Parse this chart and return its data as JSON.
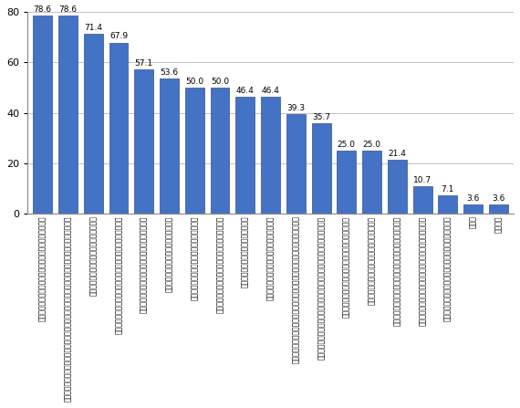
{
  "values": [
    78.6,
    78.6,
    71.4,
    67.9,
    57.1,
    53.6,
    50.0,
    50.0,
    46.4,
    46.4,
    39.3,
    35.7,
    25.0,
    25.0,
    21.4,
    10.7,
    7.1,
    3.6,
    3.6
  ],
  "labels": [
    "知事のマニフェスト・公約に雇用創出が挙げられている",
    "雇用創出のビジョン・計画をとりまとめたり、総合計画に雇用創出のための取り組みを掲げている",
    "企業誘致のためのトップセールスを行った",
    "雇用創出のための施策（業務の委託などを含む）を実施した。",
    "雇用創出のビジョンや計画に数値目標を掲げている",
    "雇用創出のための施策を新たに実施した",
    "従来からの雇用創出のための施策を強化した",
    "同じ県内の自治体と連携して雇用創出に取り組んだ",
    "雇用創出のための予算を新たに組んだ",
    "従来からの雇用創出のための予算を増やした",
    "地域の企業、ＮＰＯ、住民などの利害関係者も参加して雇用創出に取り組んだ",
    "雇用創出に関する情報収集（他の自治体の取組み事例など）の調査を行った",
    "雇用創出や雇用問題担当の部署（担当者）を拡充した",
    "雇用創出に関する研究会、協議会等をつくった",
    "地域再生計画などに申請・採択され、国の施策に対応した",
    "雇用創出や雇用問題担当の部署（担当者）を新たに設けた",
    "地域雇用創出について都道府県と対応について協議した",
    "その他",
    "特にない"
  ],
  "bar_color": "#4472C4",
  "bar_edge_color": "#2F528F",
  "ylim": [
    0,
    80
  ],
  "yticks": [
    0,
    20,
    40,
    60,
    80
  ],
  "grid_color": "#AAAAAA",
  "background_color": "#FFFFFF",
  "label_fontsize": 5.5,
  "value_fontsize": 6.5
}
